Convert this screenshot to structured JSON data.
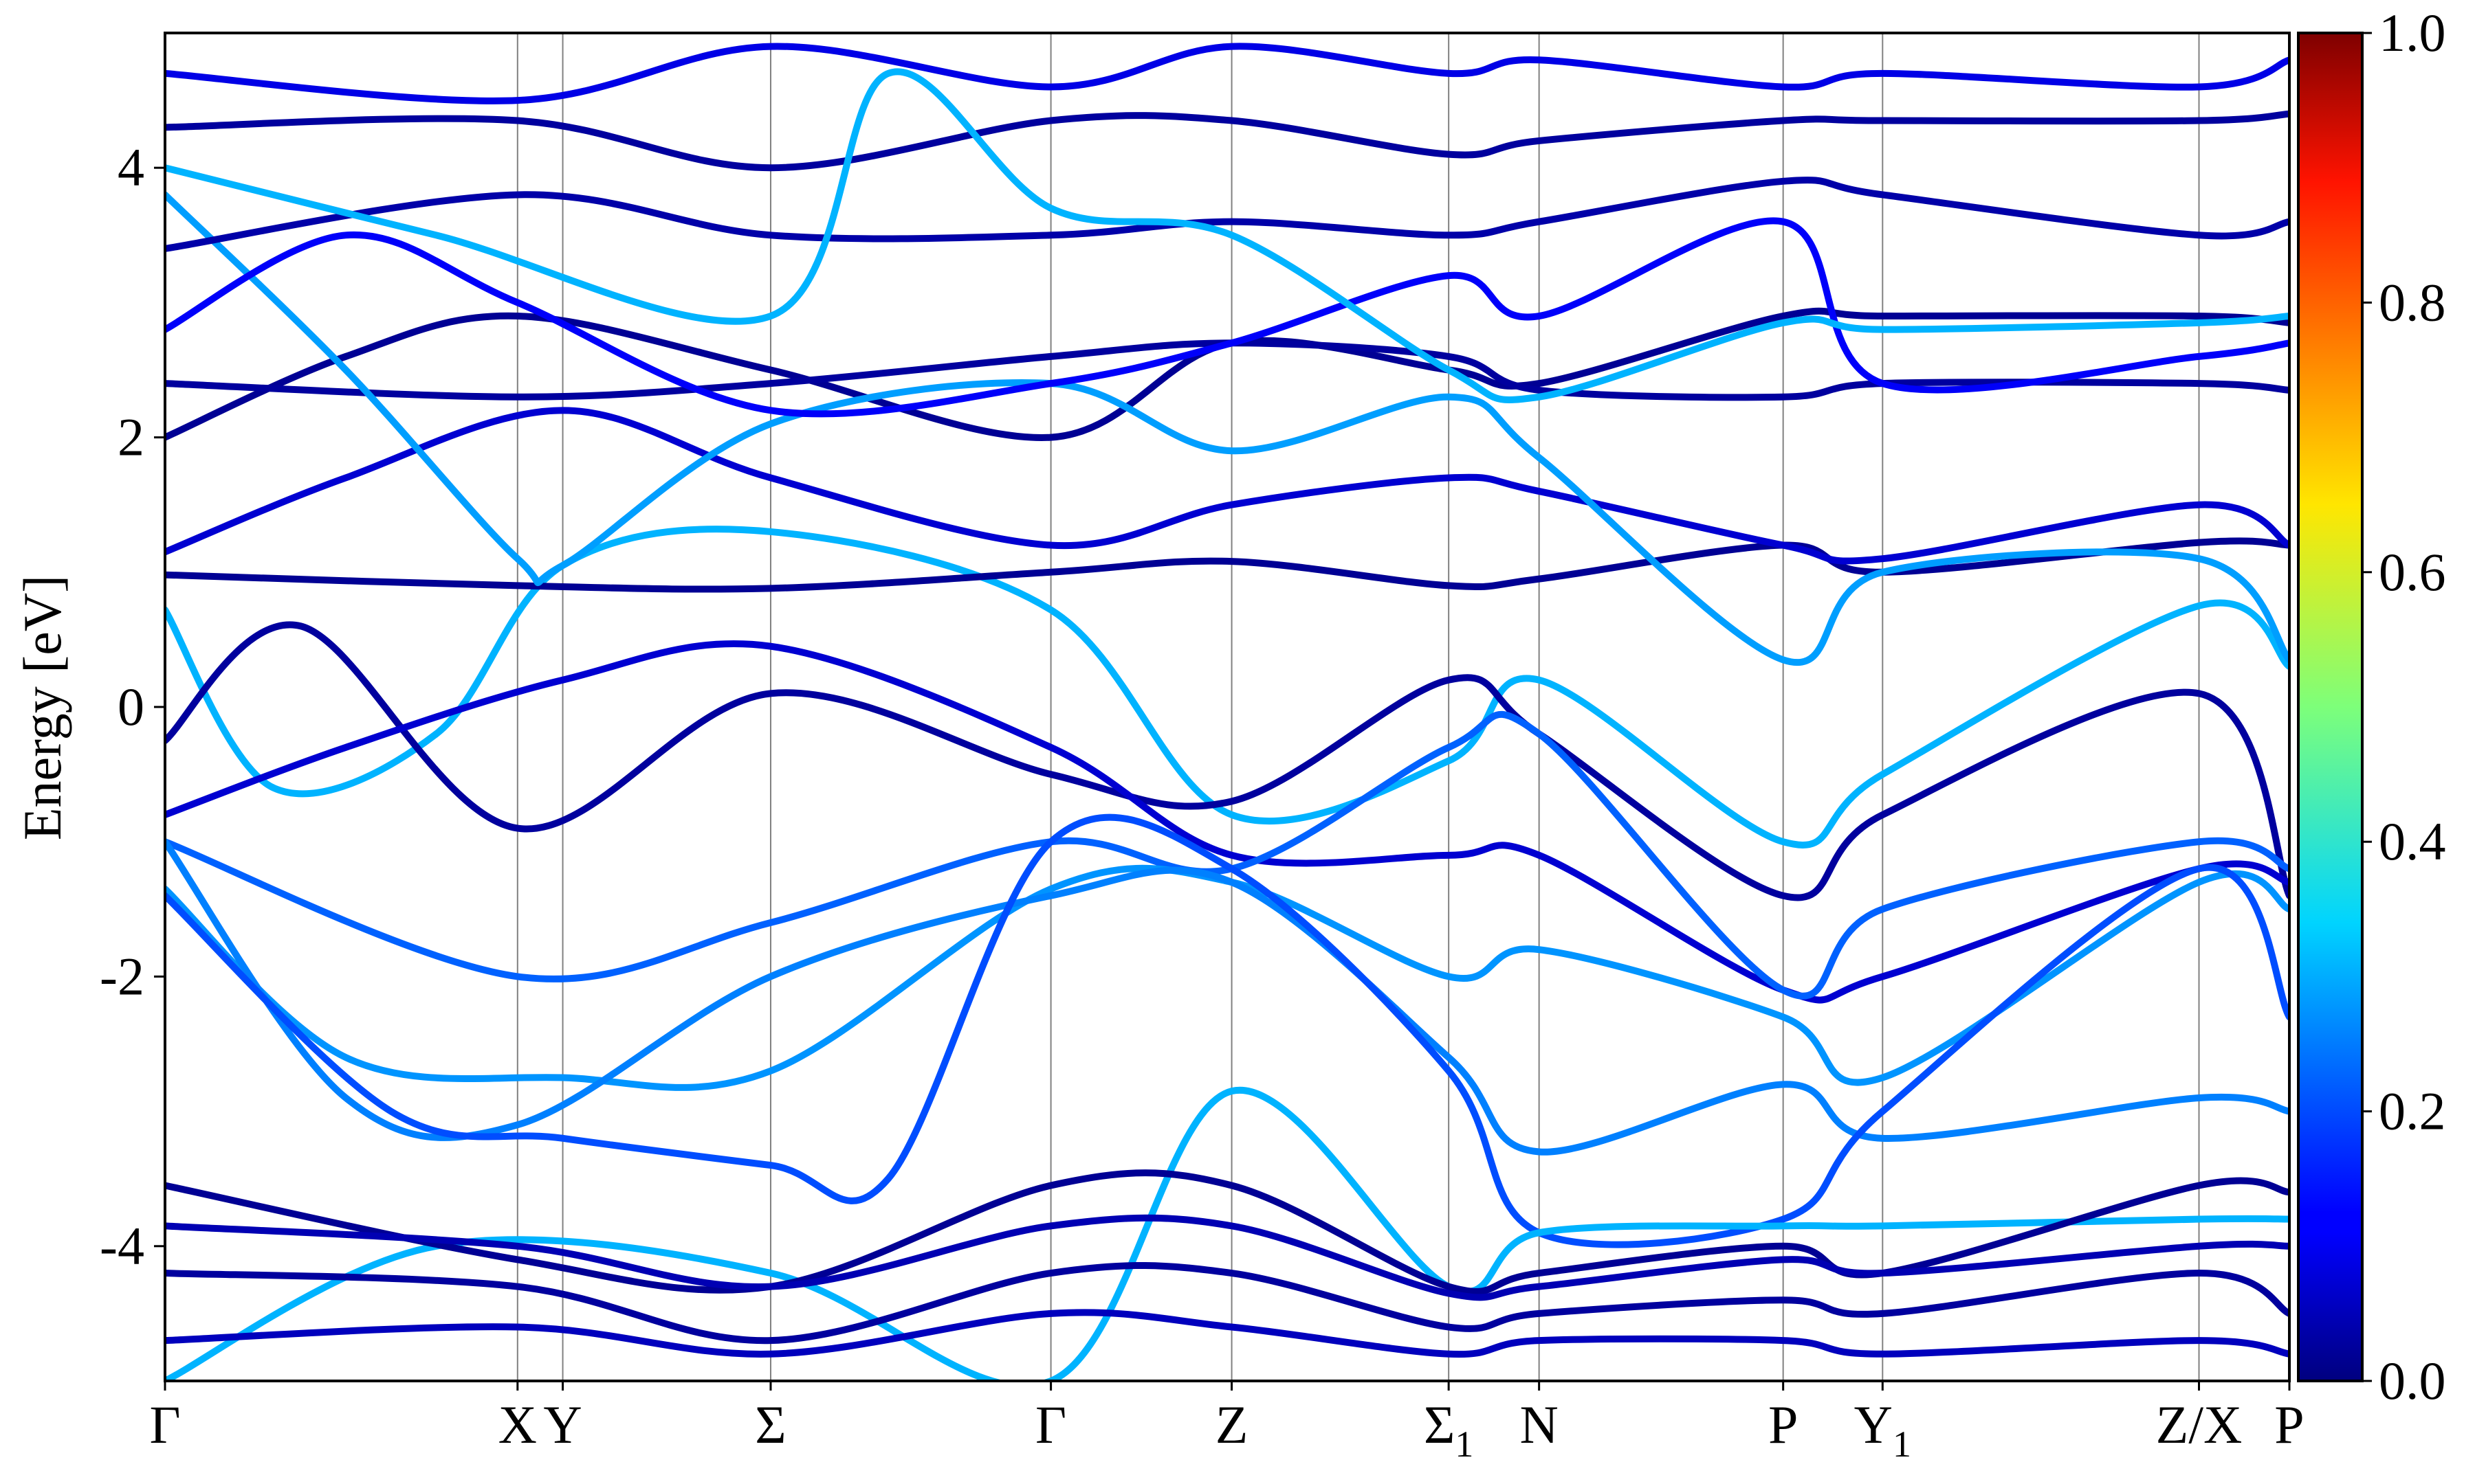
{
  "chart_data": {
    "type": "line",
    "title": "",
    "xlabel": "",
    "ylabel": "Energy [eV]",
    "ylim": [
      -5,
      5
    ],
    "yticks": [
      {
        "value": 4,
        "label": "4"
      },
      {
        "value": 2,
        "label": "2"
      },
      {
        "value": 0,
        "label": "0"
      },
      {
        "value": -2,
        "label": "-2"
      },
      {
        "value": -4,
        "label": "-4"
      }
    ],
    "xlim": [
      0,
      2.35
    ],
    "kpath": [
      {
        "x": 0.0,
        "label": "Γ",
        "sub": ""
      },
      {
        "x": 0.39,
        "label": "X",
        "sub": ""
      },
      {
        "x": 0.44,
        "label": "Y",
        "sub": ""
      },
      {
        "x": 0.67,
        "label": "Σ",
        "sub": ""
      },
      {
        "x": 0.98,
        "label": "Γ",
        "sub": ""
      },
      {
        "x": 1.18,
        "label": "Z",
        "sub": ""
      },
      {
        "x": 1.42,
        "label": "Σ",
        "sub": "1"
      },
      {
        "x": 1.52,
        "label": "N",
        "sub": ""
      },
      {
        "x": 1.79,
        "label": "P",
        "sub": ""
      },
      {
        "x": 1.9,
        "label": "Y",
        "sub": "1"
      },
      {
        "x": 2.25,
        "label": "Z/X",
        "sub": ""
      },
      {
        "x": 2.35,
        "label": "P",
        "sub": ""
      }
    ],
    "colorbar": {
      "colormap": "jet",
      "range": [
        0.0,
        1.0
      ],
      "ticks": [
        "0.0",
        "0.2",
        "0.4",
        "0.6",
        "0.8",
        "1.0"
      ]
    },
    "series": [
      {
        "weight": 0.3,
        "points": [
          [
            0,
            0.72
          ],
          [
            0.12,
            -0.6
          ],
          [
            0.3,
            -0.2
          ],
          [
            0.44,
            1.05
          ],
          [
            0.67,
            1.3
          ],
          [
            0.98,
            0.72
          ],
          [
            1.18,
            -0.8
          ],
          [
            1.42,
            -0.4
          ],
          [
            1.52,
            0.2
          ],
          [
            1.79,
            -1.0
          ],
          [
            1.9,
            -0.5
          ],
          [
            2.25,
            0.75
          ],
          [
            2.35,
            0.3
          ]
        ]
      },
      {
        "weight": 0.02,
        "points": [
          [
            0,
            0.98
          ],
          [
            0.39,
            0.9
          ],
          [
            0.67,
            0.88
          ],
          [
            0.98,
            1.0
          ],
          [
            1.18,
            1.08
          ],
          [
            1.42,
            0.9
          ],
          [
            1.52,
            0.95
          ],
          [
            1.79,
            1.2
          ],
          [
            1.9,
            1.0
          ],
          [
            2.25,
            1.22
          ],
          [
            2.35,
            1.2
          ]
        ]
      },
      {
        "weight": 0.03,
        "points": [
          [
            0,
            -0.25
          ],
          [
            0.15,
            0.6
          ],
          [
            0.39,
            -0.9
          ],
          [
            0.67,
            0.1
          ],
          [
            0.98,
            -0.5
          ],
          [
            1.18,
            -0.7
          ],
          [
            1.42,
            0.2
          ],
          [
            1.52,
            -0.2
          ],
          [
            1.79,
            -1.4
          ],
          [
            1.9,
            -0.8
          ],
          [
            2.25,
            0.1
          ],
          [
            2.35,
            -1.4
          ]
        ]
      },
      {
        "weight": 0.08,
        "points": [
          [
            0,
            -0.8
          ],
          [
            0.2,
            -0.3
          ],
          [
            0.44,
            0.2
          ],
          [
            0.67,
            0.45
          ],
          [
            0.98,
            -0.3
          ],
          [
            1.18,
            -1.1
          ],
          [
            1.42,
            -1.1
          ],
          [
            1.52,
            -1.1
          ],
          [
            1.79,
            -2.1
          ],
          [
            1.9,
            -2.0
          ],
          [
            2.25,
            -1.2
          ],
          [
            2.35,
            -1.3
          ]
        ]
      },
      {
        "weight": 0.22,
        "points": [
          [
            0,
            -1.0
          ],
          [
            0.39,
            -2.0
          ],
          [
            0.67,
            -1.6
          ],
          [
            0.98,
            -1.0
          ],
          [
            1.18,
            -1.2
          ],
          [
            1.42,
            -0.3
          ],
          [
            1.52,
            -0.2
          ],
          [
            1.79,
            -2.1
          ],
          [
            1.9,
            -1.5
          ],
          [
            2.25,
            -1.0
          ],
          [
            2.35,
            -1.2
          ]
        ]
      },
      {
        "weight": 0.27,
        "points": [
          [
            0,
            -1.35
          ],
          [
            0.2,
            -2.6
          ],
          [
            0.44,
            -2.75
          ],
          [
            0.67,
            -2.7
          ],
          [
            0.98,
            -1.35
          ],
          [
            1.18,
            -1.3
          ],
          [
            1.42,
            -2.0
          ],
          [
            1.52,
            -1.8
          ],
          [
            1.79,
            -2.3
          ],
          [
            1.9,
            -2.75
          ],
          [
            2.25,
            -1.3
          ],
          [
            2.35,
            -1.5
          ]
        ]
      },
      {
        "weight": 0.25,
        "points": [
          [
            0,
            -1.0
          ],
          [
            0.2,
            -2.9
          ],
          [
            0.39,
            -3.1
          ],
          [
            0.67,
            -2.0
          ],
          [
            0.98,
            -1.4
          ],
          [
            1.18,
            -1.3
          ],
          [
            1.42,
            -2.6
          ],
          [
            1.52,
            -3.3
          ],
          [
            1.79,
            -2.8
          ],
          [
            1.9,
            -3.2
          ],
          [
            2.25,
            -2.9
          ],
          [
            2.35,
            -3.0
          ]
        ]
      },
      {
        "weight": 0.2,
        "points": [
          [
            0,
            -1.4
          ],
          [
            0.25,
            -3.0
          ],
          [
            0.44,
            -3.2
          ],
          [
            0.67,
            -3.4
          ],
          [
            0.8,
            -3.5
          ],
          [
            0.98,
            -1.0
          ],
          [
            1.18,
            -1.2
          ],
          [
            1.42,
            -2.7
          ],
          [
            1.52,
            -3.9
          ],
          [
            1.79,
            -3.8
          ],
          [
            1.9,
            -3.0
          ],
          [
            2.25,
            -1.2
          ],
          [
            2.35,
            -2.3
          ]
        ]
      },
      {
        "weight": 0.3,
        "points": [
          [
            0,
            -5.0
          ],
          [
            0.3,
            -4.0
          ],
          [
            0.67,
            -4.2
          ],
          [
            0.98,
            -5.0
          ],
          [
            1.18,
            -2.85
          ],
          [
            1.42,
            -4.3
          ],
          [
            1.52,
            -3.9
          ],
          [
            1.79,
            -3.85
          ],
          [
            1.9,
            -3.85
          ],
          [
            2.25,
            -3.8
          ],
          [
            2.35,
            -3.8
          ]
        ]
      },
      {
        "weight": 0.02,
        "points": [
          [
            0,
            -3.55
          ],
          [
            0.39,
            -4.1
          ],
          [
            0.67,
            -4.3
          ],
          [
            0.98,
            -3.55
          ],
          [
            1.18,
            -3.55
          ],
          [
            1.42,
            -4.3
          ],
          [
            1.52,
            -4.2
          ],
          [
            1.79,
            -4.0
          ],
          [
            1.9,
            -4.2
          ],
          [
            2.25,
            -3.55
          ],
          [
            2.35,
            -3.6
          ]
        ]
      },
      {
        "weight": 0.05,
        "points": [
          [
            0,
            -3.85
          ],
          [
            0.39,
            -4.0
          ],
          [
            0.67,
            -4.3
          ],
          [
            0.98,
            -3.85
          ],
          [
            1.18,
            -3.85
          ],
          [
            1.42,
            -4.35
          ],
          [
            1.52,
            -4.3
          ],
          [
            1.79,
            -4.1
          ],
          [
            1.9,
            -4.2
          ],
          [
            2.25,
            -4.0
          ],
          [
            2.35,
            -4.0
          ]
        ]
      },
      {
        "weight": 0.03,
        "points": [
          [
            0,
            -4.2
          ],
          [
            0.39,
            -4.3
          ],
          [
            0.67,
            -4.7
          ],
          [
            0.98,
            -4.2
          ],
          [
            1.18,
            -4.2
          ],
          [
            1.42,
            -4.6
          ],
          [
            1.52,
            -4.5
          ],
          [
            1.79,
            -4.4
          ],
          [
            1.9,
            -4.5
          ],
          [
            2.25,
            -4.2
          ],
          [
            2.35,
            -4.5
          ]
        ]
      },
      {
        "weight": 0.06,
        "points": [
          [
            0,
            -4.7
          ],
          [
            0.39,
            -4.6
          ],
          [
            0.67,
            -4.8
          ],
          [
            0.98,
            -4.5
          ],
          [
            1.18,
            -4.6
          ],
          [
            1.42,
            -4.8
          ],
          [
            1.52,
            -4.7
          ],
          [
            1.79,
            -4.7
          ],
          [
            1.9,
            -4.8
          ],
          [
            2.25,
            -4.7
          ],
          [
            2.35,
            -4.8
          ]
        ]
      },
      {
        "weight": 0.02,
        "points": [
          [
            0,
            2.0
          ],
          [
            0.2,
            2.6
          ],
          [
            0.39,
            2.9
          ],
          [
            0.67,
            2.5
          ],
          [
            0.98,
            2.0
          ],
          [
            1.18,
            2.7
          ],
          [
            1.42,
            2.5
          ],
          [
            1.52,
            2.4
          ],
          [
            1.79,
            2.9
          ],
          [
            1.9,
            2.9
          ],
          [
            2.25,
            2.9
          ],
          [
            2.35,
            2.85
          ]
        ]
      },
      {
        "weight": 0.03,
        "points": [
          [
            0,
            2.4
          ],
          [
            0.39,
            2.3
          ],
          [
            0.67,
            2.4
          ],
          [
            0.98,
            2.6
          ],
          [
            1.18,
            2.7
          ],
          [
            1.42,
            2.6
          ],
          [
            1.52,
            2.35
          ],
          [
            1.79,
            2.3
          ],
          [
            1.9,
            2.4
          ],
          [
            2.25,
            2.4
          ],
          [
            2.35,
            2.35
          ]
        ]
      },
      {
        "weight": 0.08,
        "points": [
          [
            0,
            1.15
          ],
          [
            0.2,
            1.7
          ],
          [
            0.44,
            2.2
          ],
          [
            0.67,
            1.7
          ],
          [
            0.98,
            1.2
          ],
          [
            1.18,
            1.5
          ],
          [
            1.42,
            1.7
          ],
          [
            1.52,
            1.6
          ],
          [
            1.79,
            1.2
          ],
          [
            1.9,
            1.1
          ],
          [
            2.25,
            1.5
          ],
          [
            2.35,
            1.2
          ]
        ]
      },
      {
        "weight": 0.28,
        "points": [
          [
            0,
            3.8
          ],
          [
            0.2,
            2.5
          ],
          [
            0.39,
            1.1
          ],
          [
            0.44,
            1.05
          ],
          [
            0.67,
            2.1
          ],
          [
            0.98,
            2.4
          ],
          [
            1.18,
            1.9
          ],
          [
            1.42,
            2.3
          ],
          [
            1.52,
            1.85
          ],
          [
            1.79,
            0.35
          ],
          [
            1.9,
            1.0
          ],
          [
            2.25,
            1.1
          ],
          [
            2.35,
            0.35
          ]
        ]
      },
      {
        "weight": 0.12,
        "points": [
          [
            0,
            2.8
          ],
          [
            0.2,
            3.5
          ],
          [
            0.39,
            3.0
          ],
          [
            0.67,
            2.2
          ],
          [
            0.98,
            2.4
          ],
          [
            1.18,
            2.7
          ],
          [
            1.42,
            3.2
          ],
          [
            1.52,
            2.9
          ],
          [
            1.79,
            3.6
          ],
          [
            1.9,
            2.4
          ],
          [
            2.25,
            2.6
          ],
          [
            2.35,
            2.7
          ]
        ]
      },
      {
        "weight": 0.04,
        "points": [
          [
            0,
            3.4
          ],
          [
            0.39,
            3.8
          ],
          [
            0.67,
            3.5
          ],
          [
            0.98,
            3.5
          ],
          [
            1.18,
            3.6
          ],
          [
            1.42,
            3.5
          ],
          [
            1.52,
            3.6
          ],
          [
            1.79,
            3.9
          ],
          [
            1.9,
            3.8
          ],
          [
            2.25,
            3.5
          ],
          [
            2.35,
            3.6
          ]
        ]
      },
      {
        "weight": 0.03,
        "points": [
          [
            0,
            4.3
          ],
          [
            0.39,
            4.35
          ],
          [
            0.67,
            4.0
          ],
          [
            0.98,
            4.35
          ],
          [
            1.18,
            4.35
          ],
          [
            1.42,
            4.1
          ],
          [
            1.52,
            4.2
          ],
          [
            1.79,
            4.35
          ],
          [
            1.9,
            4.35
          ],
          [
            2.25,
            4.35
          ],
          [
            2.35,
            4.4
          ]
        ]
      },
      {
        "weight": 0.3,
        "points": [
          [
            0,
            4.0
          ],
          [
            0.3,
            3.5
          ],
          [
            0.67,
            2.9
          ],
          [
            0.8,
            4.7
          ],
          [
            0.98,
            3.7
          ],
          [
            1.18,
            3.5
          ],
          [
            1.42,
            2.5
          ],
          [
            1.52,
            2.3
          ],
          [
            1.79,
            2.85
          ],
          [
            1.9,
            2.8
          ],
          [
            2.25,
            2.85
          ],
          [
            2.35,
            2.9
          ]
        ]
      },
      {
        "weight": 0.1,
        "points": [
          [
            0,
            4.7
          ],
          [
            0.39,
            4.5
          ],
          [
            0.67,
            4.9
          ],
          [
            0.98,
            4.6
          ],
          [
            1.18,
            4.9
          ],
          [
            1.42,
            4.7
          ],
          [
            1.52,
            4.8
          ],
          [
            1.79,
            4.6
          ],
          [
            1.9,
            4.7
          ],
          [
            2.25,
            4.6
          ],
          [
            2.35,
            4.8
          ]
        ]
      }
    ]
  }
}
